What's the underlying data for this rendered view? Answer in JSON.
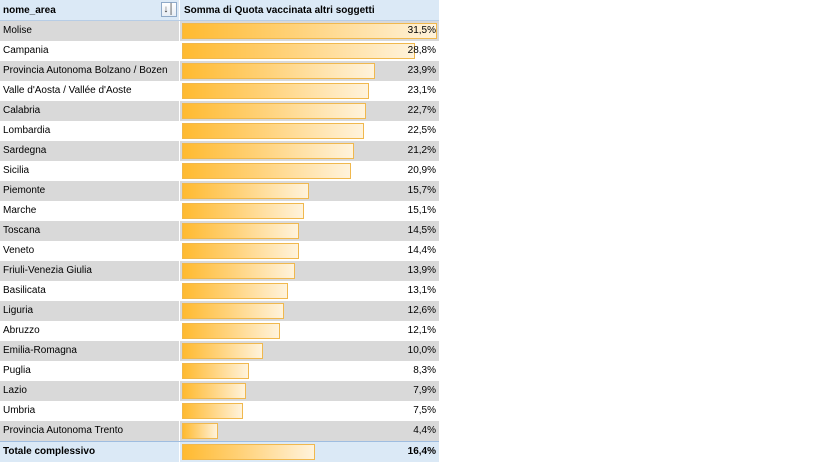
{
  "header": {
    "col_name": "nome_area",
    "col_value": "Somma di Quota vaccinata altri soggetti",
    "filter_icon": "sort-filter-icon"
  },
  "bar_colors": {
    "start": "#ffba30",
    "end": "#fff3dc",
    "border": "#f0b84e"
  },
  "max_value": 31.5,
  "rows": [
    {
      "name": "Molise",
      "label": "31,5%",
      "value": 31.5
    },
    {
      "name": "Campania",
      "label": "28,8%",
      "value": 28.8
    },
    {
      "name": "Provincia Autonoma Bolzano / Bozen",
      "label": "23,9%",
      "value": 23.9
    },
    {
      "name": "Valle d'Aosta / Vallée d'Aoste",
      "label": "23,1%",
      "value": 23.1
    },
    {
      "name": "Calabria",
      "label": "22,7%",
      "value": 22.7
    },
    {
      "name": "Lombardia",
      "label": "22,5%",
      "value": 22.5
    },
    {
      "name": "Sardegna",
      "label": "21,2%",
      "value": 21.2
    },
    {
      "name": "Sicilia",
      "label": "20,9%",
      "value": 20.9
    },
    {
      "name": "Piemonte",
      "label": "15,7%",
      "value": 15.7
    },
    {
      "name": "Marche",
      "label": "15,1%",
      "value": 15.1
    },
    {
      "name": "Toscana",
      "label": "14,5%",
      "value": 14.5
    },
    {
      "name": "Veneto",
      "label": "14,4%",
      "value": 14.4
    },
    {
      "name": "Friuli-Venezia Giulia",
      "label": "13,9%",
      "value": 13.9
    },
    {
      "name": "Basilicata",
      "label": "13,1%",
      "value": 13.1
    },
    {
      "name": "Liguria",
      "label": "12,6%",
      "value": 12.6
    },
    {
      "name": "Abruzzo",
      "label": "12,1%",
      "value": 12.1
    },
    {
      "name": "Emilia-Romagna",
      "label": "10,0%",
      "value": 10.0
    },
    {
      "name": "Puglia",
      "label": "8,3%",
      "value": 8.3
    },
    {
      "name": "Lazio",
      "label": "7,9%",
      "value": 7.9
    },
    {
      "name": "Umbria",
      "label": "7,5%",
      "value": 7.5
    },
    {
      "name": "Provincia Autonoma Trento",
      "label": "4,4%",
      "value": 4.4
    }
  ],
  "total": {
    "name": "Totale complessivo",
    "label": "16,4%",
    "value": 16.4
  }
}
